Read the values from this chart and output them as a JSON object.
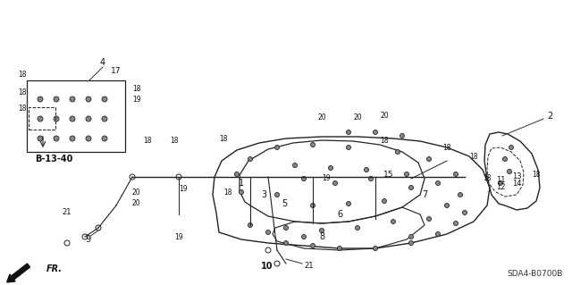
{
  "background_color": "#ffffff",
  "line_color": "#222222",
  "callout_B1340": "B-13-40",
  "diagram_code": "SDA4-B0700B",
  "arrow_label": "FR.",
  "fig_width": 6.4,
  "fig_height": 3.19,
  "dpi": 100
}
